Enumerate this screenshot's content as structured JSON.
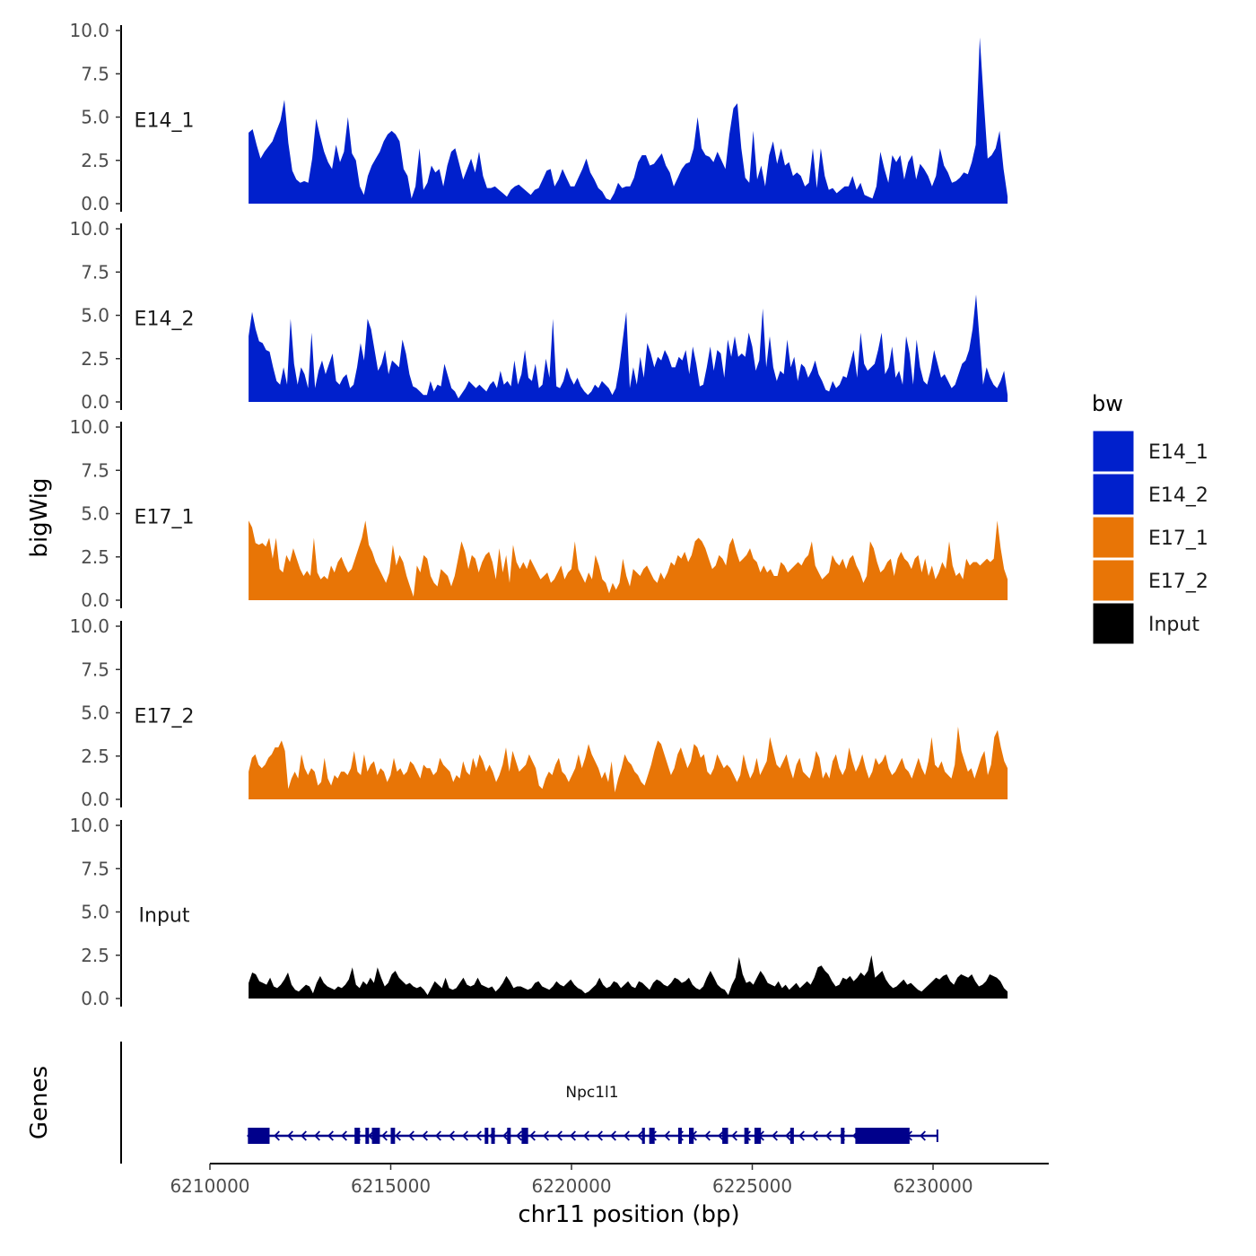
{
  "chart_data": {
    "type": "area",
    "ylabel": "bigWig",
    "xlabel": "chr11 position (bp)",
    "x_ticks": [
      6210000,
      6215000,
      6220000,
      6225000,
      6230000
    ],
    "x_range": [
      6210000,
      6233200
    ],
    "data_x_range": [
      6211070,
      6232060
    ],
    "y_ticks": [
      "0.0",
      "2.5",
      "5.0",
      "7.5",
      "10.0"
    ],
    "y_range": [
      0,
      10
    ],
    "legend": {
      "title": "bw",
      "position": "right",
      "entries": [
        {
          "label": "E14_1",
          "color": "#0020CC"
        },
        {
          "label": "E14_2",
          "color": "#0020CC"
        },
        {
          "label": "E17_1",
          "color": "#E87506"
        },
        {
          "label": "E17_2",
          "color": "#E87506"
        },
        {
          "label": "Input",
          "color": "#000000"
        }
      ]
    },
    "series": [
      {
        "name": "E14_1",
        "color": "#0020CC",
        "values": [
          4.1,
          4.3,
          3.4,
          2.6,
          3.0,
          3.3,
          3.6,
          4.2,
          4.8,
          6.0,
          3.5,
          1.9,
          1.4,
          1.2,
          1.3,
          1.2,
          2.6,
          4.9,
          3.9,
          3.0,
          2.4,
          2.0,
          3.4,
          2.4,
          3.0,
          5.0,
          2.9,
          2.5,
          1.0,
          0.5,
          1.6,
          2.2,
          2.6,
          3.0,
          3.6,
          4.0,
          4.2,
          4.0,
          3.6,
          2.0,
          1.6,
          0.3,
          1.0,
          3.2,
          0.8,
          1.2,
          2.2,
          1.8,
          2.0,
          1.0,
          2.2,
          3.0,
          3.2,
          2.3,
          1.4,
          2.0,
          2.6,
          1.8,
          3.0,
          1.6,
          0.9,
          0.9,
          1.0,
          0.8,
          0.6,
          0.4,
          0.8,
          1.0,
          1.1,
          0.9,
          0.7,
          0.5,
          0.8,
          0.9,
          1.4,
          1.9,
          2.0,
          1.0,
          1.4,
          2.0,
          1.5,
          1.0,
          1.0,
          1.5,
          2.0,
          2.6,
          1.8,
          1.4,
          0.9,
          0.7,
          0.3,
          0.2,
          0.6,
          1.2,
          0.9,
          1.0,
          1.0,
          1.5,
          2.4,
          2.8,
          2.8,
          2.2,
          2.3,
          2.6,
          2.9,
          2.2,
          1.8,
          1.0,
          1.5,
          2.0,
          2.3,
          2.4,
          3.2,
          5.0,
          3.2,
          2.8,
          2.7,
          2.4,
          3.0,
          2.5,
          2.0,
          4.0,
          5.5,
          5.8,
          3.2,
          1.5,
          1.2,
          4.2,
          1.4,
          2.2,
          1.0,
          2.8,
          3.6,
          2.3,
          3.2,
          2.2,
          2.4,
          1.6,
          1.8,
          1.6,
          1.0,
          1.2,
          3.2,
          0.9,
          3.2,
          1.6,
          0.8,
          0.9,
          0.6,
          0.8,
          1.0,
          1.0,
          1.6,
          0.8,
          1.2,
          0.5,
          0.4,
          0.3,
          1.0,
          3.0,
          2.0,
          1.2,
          2.8,
          2.4,
          2.8,
          1.4,
          2.4,
          2.8,
          1.4,
          2.3,
          2.0,
          1.6,
          1.0,
          1.6,
          3.2,
          2.2,
          1.8,
          1.2,
          1.3,
          1.5,
          1.8,
          1.7,
          2.4,
          3.4,
          9.6,
          6.0,
          2.6,
          2.8,
          3.2,
          4.2,
          2.0,
          0.4
        ]
      },
      {
        "name": "E14_2",
        "color": "#0020CC",
        "values": [
          3.8,
          5.2,
          4.2,
          3.5,
          3.4,
          3.0,
          2.9,
          2.0,
          1.2,
          1.0,
          2.0,
          1.0,
          4.8,
          2.2,
          1.0,
          2.0,
          1.6,
          0.8,
          4.0,
          0.8,
          1.8,
          2.4,
          1.6,
          2.2,
          2.8,
          1.2,
          1.0,
          1.4,
          1.6,
          0.8,
          1.0,
          2.0,
          3.4,
          2.4,
          4.8,
          4.2,
          3.0,
          1.8,
          2.2,
          3.0,
          1.6,
          2.4,
          2.2,
          2.0,
          3.6,
          2.8,
          1.6,
          0.9,
          0.8,
          0.6,
          0.4,
          0.4,
          1.2,
          0.6,
          1.0,
          0.9,
          2.2,
          1.5,
          0.8,
          0.6,
          0.2,
          0.5,
          0.8,
          1.2,
          1.0,
          0.8,
          1.0,
          0.8,
          0.6,
          1.0,
          1.2,
          0.8,
          1.8,
          1.0,
          1.2,
          0.9,
          2.4,
          1.0,
          1.6,
          3.0,
          1.4,
          1.2,
          2.2,
          0.8,
          1.0,
          2.5,
          1.4,
          4.8,
          0.9,
          0.8,
          1.2,
          2.0,
          1.4,
          1.0,
          1.4,
          0.9,
          0.6,
          0.4,
          0.6,
          1.0,
          0.8,
          1.2,
          1.0,
          0.8,
          0.4,
          0.8,
          2.0,
          3.6,
          5.2,
          0.8,
          2.0,
          1.0,
          2.6,
          1.4,
          3.4,
          2.8,
          2.0,
          2.6,
          2.4,
          3.0,
          2.6,
          2.0,
          2.0,
          2.6,
          2.4,
          3.0,
          1.6,
          3.2,
          2.2,
          0.9,
          1.0,
          2.0,
          3.2,
          1.8,
          3.0,
          2.8,
          1.4,
          3.6,
          2.6,
          3.8,
          2.6,
          2.8,
          2.6,
          4.0,
          3.2,
          1.8,
          2.4,
          5.4,
          2.0,
          3.8,
          2.0,
          1.2,
          1.8,
          1.6,
          3.6,
          2.0,
          2.6,
          1.2,
          2.2,
          2.0,
          1.4,
          1.8,
          2.4,
          1.6,
          1.2,
          0.7,
          0.6,
          1.2,
          0.8,
          1.0,
          1.5,
          1.4,
          2.2,
          3.0,
          1.4,
          4.0,
          2.2,
          1.8,
          2.0,
          2.2,
          3.0,
          4.0,
          1.6,
          2.0,
          3.2,
          1.4,
          1.8,
          1.0,
          3.8,
          2.8,
          1.0,
          3.6,
          2.0,
          1.2,
          1.0,
          1.8,
          3.0,
          2.2,
          1.4,
          1.6,
          1.2,
          0.8,
          1.0,
          1.6,
          2.2,
          2.4,
          3.0,
          4.2,
          6.2,
          3.6,
          1.0,
          2.0,
          1.4,
          1.0,
          0.8,
          1.2,
          1.8,
          0.4
        ]
      },
      {
        "name": "E17_1",
        "color": "#E87506",
        "values": [
          4.6,
          4.2,
          3.3,
          3.2,
          3.3,
          3.1,
          3.6,
          2.4,
          3.6,
          1.8,
          1.6,
          2.6,
          2.2,
          3.0,
          2.4,
          1.8,
          1.4,
          1.7,
          1.4,
          3.6,
          1.6,
          1.2,
          1.4,
          1.2,
          2.0,
          1.6,
          2.2,
          2.5,
          2.0,
          1.6,
          1.8,
          2.4,
          3.0,
          3.6,
          4.6,
          3.2,
          2.8,
          2.2,
          1.8,
          1.4,
          1.0,
          1.6,
          3.2,
          2.0,
          2.6,
          2.2,
          1.4,
          0.8,
          0.2,
          2.0,
          1.6,
          2.6,
          2.4,
          1.4,
          1.0,
          0.8,
          1.8,
          1.6,
          1.4,
          0.8,
          1.4,
          2.4,
          3.4,
          2.8,
          1.8,
          2.6,
          2.4,
          1.6,
          2.2,
          2.6,
          2.8,
          2.2,
          1.2,
          3.0,
          1.6,
          2.6,
          1.0,
          3.2,
          2.2,
          1.8,
          2.2,
          1.8,
          2.4,
          2.0,
          1.6,
          1.2,
          1.4,
          1.6,
          1.0,
          1.2,
          1.6,
          2.0,
          1.2,
          1.6,
          1.8,
          3.4,
          1.8,
          1.4,
          1.0,
          1.6,
          1.2,
          2.6,
          2.0,
          1.2,
          1.0,
          0.4,
          1.0,
          0.6,
          1.0,
          2.4,
          1.4,
          0.8,
          1.8,
          1.6,
          1.4,
          1.8,
          2.0,
          1.6,
          1.2,
          1.0,
          1.6,
          1.2,
          1.6,
          2.2,
          2.0,
          2.6,
          2.4,
          2.8,
          2.2,
          2.6,
          3.4,
          3.6,
          3.4,
          3.0,
          2.4,
          1.8,
          2.0,
          2.6,
          2.4,
          2.0,
          3.2,
          3.6,
          2.8,
          2.2,
          2.4,
          2.6,
          3.0,
          2.4,
          2.2,
          1.6,
          2.0,
          1.6,
          1.8,
          1.4,
          1.4,
          2.2,
          2.0,
          1.6,
          1.8,
          2.0,
          2.2,
          2.0,
          2.4,
          2.6,
          3.4,
          2.0,
          1.6,
          1.2,
          1.4,
          1.6,
          2.6,
          2.2,
          2.0,
          2.4,
          1.8,
          2.4,
          2.6,
          2.0,
          1.6,
          1.0,
          1.4,
          3.4,
          3.0,
          2.2,
          1.6,
          1.8,
          2.2,
          2.4,
          1.4,
          2.4,
          2.8,
          2.4,
          2.2,
          1.8,
          2.4,
          2.6,
          1.6,
          2.4,
          1.4,
          2.0,
          1.2,
          1.6,
          2.2,
          1.8,
          3.4,
          2.0,
          1.4,
          1.6,
          1.2,
          2.4,
          2.0,
          2.2,
          2.2,
          2.0,
          2.2,
          2.4,
          2.2,
          2.4,
          4.6,
          3.0,
          1.8,
          1.2
        ]
      },
      {
        "name": "E17_2",
        "color": "#E87506",
        "values": [
          1.6,
          2.4,
          2.6,
          2.0,
          1.8,
          2.0,
          2.4,
          2.6,
          3.0,
          3.0,
          3.4,
          2.8,
          0.6,
          1.2,
          1.6,
          1.2,
          2.6,
          1.8,
          1.4,
          1.8,
          1.6,
          0.8,
          1.0,
          2.4,
          1.2,
          0.8,
          1.4,
          1.2,
          1.6,
          1.6,
          1.4,
          1.8,
          2.8,
          1.6,
          1.4,
          2.6,
          1.6,
          2.0,
          2.2,
          1.4,
          1.8,
          1.6,
          1.0,
          1.4,
          2.4,
          1.6,
          1.8,
          1.4,
          1.6,
          2.2,
          2.0,
          1.6,
          1.2,
          2.0,
          1.8,
          1.8,
          1.4,
          1.6,
          2.4,
          2.0,
          1.8,
          1.6,
          1.0,
          1.4,
          1.2,
          2.2,
          1.6,
          1.4,
          2.4,
          1.8,
          2.6,
          2.2,
          1.6,
          2.0,
          1.6,
          1.0,
          1.4,
          2.0,
          3.0,
          1.6,
          2.8,
          2.2,
          1.6,
          1.8,
          2.0,
          2.6,
          2.2,
          1.8,
          0.8,
          0.6,
          1.2,
          1.6,
          1.4,
          2.0,
          2.4,
          1.6,
          1.4,
          1.0,
          1.4,
          1.8,
          2.6,
          1.8,
          2.4,
          3.2,
          2.6,
          2.2,
          1.8,
          1.2,
          1.6,
          1.0,
          2.2,
          0.4,
          1.2,
          1.8,
          2.6,
          2.2,
          2.0,
          1.6,
          1.4,
          1.0,
          0.8,
          1.4,
          2.0,
          2.8,
          3.4,
          3.2,
          2.6,
          2.0,
          1.4,
          1.8,
          2.6,
          3.0,
          2.4,
          1.8,
          2.2,
          3.2,
          3.0,
          2.4,
          2.6,
          1.6,
          1.4,
          1.8,
          2.6,
          2.2,
          1.8,
          2.0,
          1.8,
          1.4,
          1.0,
          1.4,
          2.6,
          1.8,
          1.2,
          1.6,
          2.4,
          1.4,
          1.8,
          2.2,
          3.6,
          2.8,
          2.0,
          1.8,
          2.2,
          2.6,
          1.8,
          1.2,
          2.0,
          2.4,
          1.6,
          1.4,
          1.2,
          1.8,
          2.8,
          2.4,
          1.2,
          1.6,
          1.2,
          2.2,
          2.6,
          1.8,
          1.4,
          1.8,
          3.0,
          2.2,
          1.6,
          2.0,
          2.6,
          1.8,
          1.2,
          1.6,
          2.4,
          2.0,
          2.2,
          2.6,
          1.8,
          1.4,
          1.6,
          2.0,
          2.4,
          1.8,
          1.6,
          1.2,
          1.8,
          2.4,
          1.8,
          1.4,
          2.2,
          3.6,
          2.0,
          1.8,
          2.2,
          1.6,
          1.4,
          1.2,
          2.0,
          4.2,
          2.8,
          2.2,
          1.6,
          1.8,
          1.2,
          1.8,
          2.4,
          2.8,
          1.4,
          2.0,
          3.6,
          4.0,
          3.0,
          2.2,
          1.8
        ]
      },
      {
        "name": "Input",
        "color": "#000000",
        "values": [
          0.9,
          1.5,
          1.4,
          1.0,
          0.9,
          0.8,
          1.2,
          0.7,
          0.6,
          0.8,
          1.1,
          1.5,
          0.8,
          0.5,
          0.4,
          0.6,
          0.8,
          0.7,
          0.3,
          0.9,
          1.3,
          0.9,
          0.7,
          0.6,
          0.5,
          0.7,
          0.6,
          0.8,
          1.1,
          1.8,
          0.8,
          0.6,
          1.0,
          0.8,
          1.2,
          0.9,
          1.8,
          1.2,
          0.7,
          0.9,
          1.4,
          1.6,
          1.2,
          1.0,
          0.8,
          0.9,
          0.7,
          0.6,
          0.7,
          0.5,
          0.2,
          0.6,
          1.0,
          0.8,
          0.6,
          1.2,
          0.6,
          0.5,
          0.6,
          0.9,
          1.2,
          0.8,
          0.7,
          0.8,
          1.2,
          0.8,
          0.7,
          0.6,
          0.7,
          0.4,
          0.6,
          0.9,
          1.3,
          1.0,
          0.6,
          0.7,
          0.7,
          0.6,
          0.5,
          0.6,
          0.9,
          1.0,
          0.7,
          0.6,
          0.5,
          0.7,
          1.0,
          0.8,
          0.7,
          0.9,
          1.1,
          0.8,
          0.6,
          0.5,
          0.3,
          0.4,
          0.6,
          0.8,
          1.2,
          0.8,
          0.6,
          0.7,
          1.0,
          0.9,
          0.6,
          0.8,
          1.0,
          0.7,
          0.6,
          1.0,
          0.9,
          0.7,
          0.5,
          0.9,
          1.1,
          1.0,
          0.8,
          0.7,
          0.9,
          1.2,
          1.1,
          0.9,
          1.0,
          1.2,
          0.8,
          0.6,
          0.5,
          0.7,
          1.2,
          1.6,
          1.2,
          0.8,
          0.6,
          0.5,
          0.2,
          0.8,
          1.2,
          2.4,
          1.4,
          0.9,
          1.0,
          0.8,
          1.2,
          1.6,
          1.3,
          0.9,
          0.8,
          0.7,
          1.0,
          0.6,
          0.8,
          0.5,
          0.7,
          0.9,
          0.6,
          0.8,
          1.0,
          0.8,
          1.2,
          1.8,
          1.9,
          1.6,
          1.4,
          1.0,
          0.7,
          0.8,
          1.2,
          1.1,
          1.3,
          1.0,
          1.2,
          1.5,
          1.3,
          1.6,
          2.5,
          1.2,
          1.4,
          1.6,
          1.1,
          0.8,
          0.6,
          0.7,
          0.9,
          1.1,
          0.8,
          0.9,
          0.7,
          0.5,
          0.4,
          0.6,
          0.8,
          1.0,
          1.2,
          1.1,
          1.3,
          1.4,
          1.0,
          0.8,
          1.2,
          1.4,
          1.3,
          1.2,
          1.4,
          1.0,
          0.7,
          0.8,
          1.0,
          1.4,
          1.3,
          1.2,
          1.0,
          0.6,
          0.4
        ]
      }
    ],
    "genes_track": {
      "label": "Genes",
      "gene_name": "Npc1l1",
      "strand": "-",
      "start": 6211050,
      "end": 6230120,
      "exons": [
        [
          6211050,
          6211650
        ],
        [
          6214000,
          6214150
        ],
        [
          6214300,
          6214400
        ],
        [
          6214480,
          6214700
        ],
        [
          6215000,
          6215120
        ],
        [
          6217600,
          6217700
        ],
        [
          6217780,
          6217880
        ],
        [
          6218220,
          6218320
        ],
        [
          6218620,
          6218800
        ],
        [
          6221950,
          6222030
        ],
        [
          6222150,
          6222300
        ],
        [
          6222950,
          6223050
        ],
        [
          6223250,
          6223380
        ],
        [
          6224170,
          6224330
        ],
        [
          6224780,
          6224900
        ],
        [
          6225060,
          6225240
        ],
        [
          6226050,
          6226150
        ],
        [
          6227450,
          6227550
        ],
        [
          6227850,
          6229350
        ]
      ]
    }
  }
}
